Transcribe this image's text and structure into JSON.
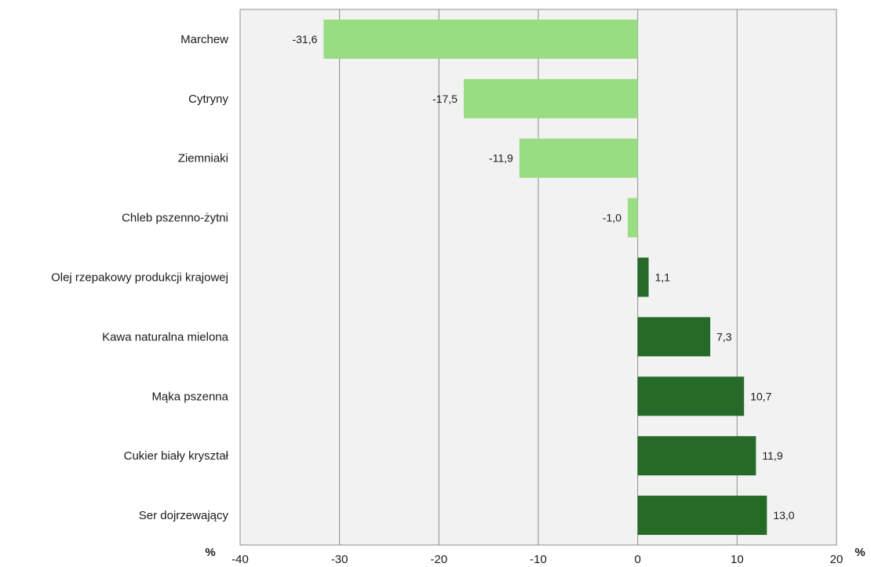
{
  "chart_data": {
    "type": "bar",
    "orientation": "horizontal",
    "categories": [
      "Marchew",
      "Cytryny",
      "Ziemniaki",
      "Chleb pszenno-żytni",
      "Olej rzepakowy produkcji krajowej",
      "Kawa naturalna mielona",
      "Mąka pszenna",
      "Cukier biały kryształ",
      "Ser dojrzewający"
    ],
    "values": [
      -31.6,
      -17.5,
      -11.9,
      -1.0,
      1.1,
      7.3,
      10.7,
      11.9,
      13.0
    ],
    "value_labels": [
      "-31,6",
      "-17,5",
      "-11,9",
      "-1,0",
      "1,1",
      "7,3",
      "10,7",
      "11,9",
      "13,0"
    ],
    "xlim": [
      -40,
      20
    ],
    "xticks": [
      -40,
      -30,
      -20,
      -10,
      0,
      10,
      20
    ],
    "xtick_labels": [
      "-40",
      "-30",
      "-20",
      "-10",
      "0",
      "10",
      "20"
    ],
    "unit_label_left": "%",
    "unit_label_right": "%",
    "grid": true,
    "colors": {
      "negative": "#98dd82",
      "positive": "#256b27",
      "plot_background": "#f2f2f2",
      "gridline": "#8c8c8c"
    }
  }
}
